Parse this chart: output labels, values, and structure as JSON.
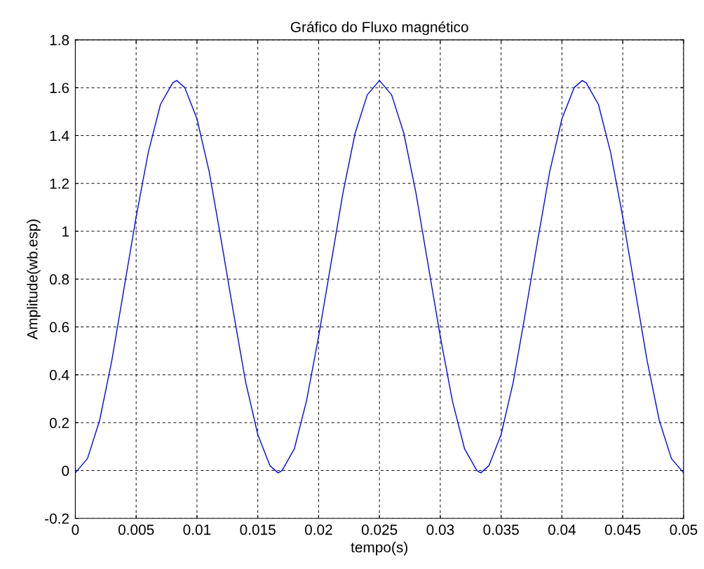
{
  "chart_data": {
    "type": "line",
    "title": "Gráfico do Fluxo magnético",
    "xlabel": "tempo(s)",
    "ylabel": "Amplitude(wb.esp)",
    "x": [
      0,
      0.001,
      0.002,
      0.003,
      0.004,
      0.005,
      0.006,
      0.007,
      0.008,
      0.00833,
      0.009,
      0.01,
      0.011,
      0.012,
      0.013,
      0.014,
      0.015,
      0.016,
      0.01667,
      0.017,
      0.018,
      0.019,
      0.02,
      0.021,
      0.022,
      0.023,
      0.024,
      0.025,
      0.026,
      0.027,
      0.028,
      0.029,
      0.03,
      0.031,
      0.032,
      0.033,
      0.03333,
      0.034,
      0.035,
      0.036,
      0.037,
      0.038,
      0.039,
      0.04,
      0.041,
      0.04167,
      0.042,
      0.043,
      0.044,
      0.045,
      0.046,
      0.047,
      0.048,
      0.049,
      0.05
    ],
    "series": [
      {
        "color": "#0000ff",
        "values": [
          -0.01,
          0.05,
          0.21,
          0.46,
          0.76,
          1.06,
          1.33,
          1.53,
          1.62,
          1.63,
          1.6,
          1.47,
          1.25,
          0.96,
          0.66,
          0.37,
          0.15,
          0.02,
          -0.01,
          0.0,
          0.09,
          0.29,
          0.56,
          0.86,
          1.16,
          1.41,
          1.57,
          1.63,
          1.57,
          1.41,
          1.16,
          0.86,
          0.56,
          0.29,
          0.09,
          0.0,
          -0.01,
          0.02,
          0.15,
          0.37,
          0.66,
          0.96,
          1.25,
          1.47,
          1.6,
          1.63,
          1.62,
          1.53,
          1.33,
          1.06,
          0.76,
          0.46,
          0.21,
          0.05,
          -0.01
        ]
      }
    ],
    "xlim": [
      0,
      0.05
    ],
    "ylim": [
      -0.2,
      1.8
    ],
    "xticks": [
      0,
      0.005,
      0.01,
      0.015,
      0.02,
      0.025,
      0.03,
      0.035,
      0.04,
      0.045,
      0.05
    ],
    "yticks": [
      -0.2,
      0,
      0.2,
      0.4,
      0.6,
      0.8,
      1,
      1.2,
      1.4,
      1.6,
      1.8
    ],
    "grid": true,
    "line_style": "solid",
    "marker": "none",
    "legend": false
  }
}
